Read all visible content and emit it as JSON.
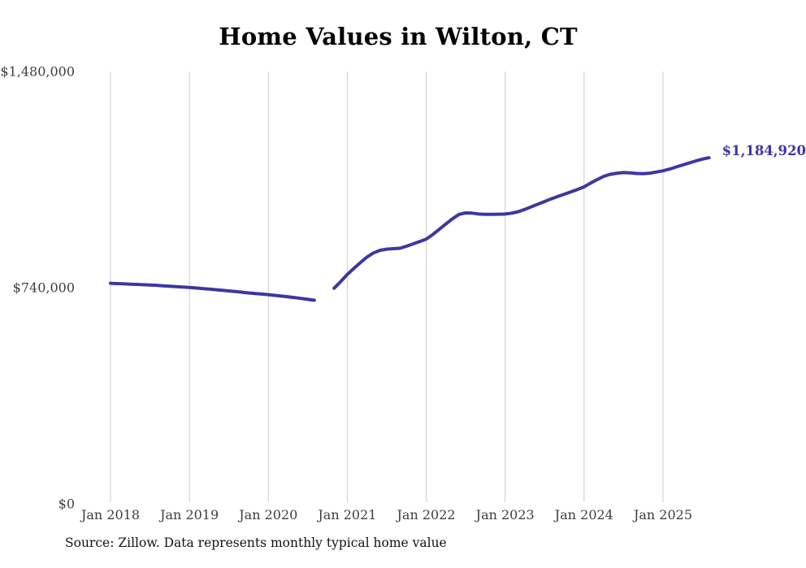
{
  "title": "Home Values in Wilton, CT",
  "source_note": "Source: Zillow. Data represents monthly typical home value",
  "colors": {
    "line": "#3c37a0",
    "grid": "#cccccc",
    "axis_text": "#3d3d3d",
    "title_text": "#000000",
    "end_label_text": "#3c37a0"
  },
  "chart_data": {
    "type": "line",
    "title": "Home Values in Wilton, CT",
    "xlabel": "",
    "ylabel": "",
    "unit": "USD",
    "frequency": "monthly",
    "grid": "vertical-only",
    "legend": "none",
    "ylim": [
      0,
      1480000
    ],
    "y_tick_labels": [
      {
        "label": "$0",
        "value": 0
      },
      {
        "label": "$740,000",
        "value": 740000
      },
      {
        "label": "$1,480,000",
        "value": 1480000
      }
    ],
    "x_tick_labels": [
      {
        "label": "Jan 2018",
        "month_offset": 0
      },
      {
        "label": "Jan 2019",
        "month_offset": 12
      },
      {
        "label": "Jan 2020",
        "month_offset": 24
      },
      {
        "label": "Jan 2021",
        "month_offset": 36
      },
      {
        "label": "Jan 2022",
        "month_offset": 48
      },
      {
        "label": "Jan 2023",
        "month_offset": 60
      },
      {
        "label": "Jan 2024",
        "month_offset": 72
      },
      {
        "label": "Jan 2025",
        "month_offset": 84
      }
    ],
    "data_gap_months": [
      "2020-09",
      "2020-10"
    ],
    "series": [
      {
        "name": "Typical home value",
        "start_month": "2018-01",
        "values": [
          755000,
          754000,
          753000,
          752000,
          751000,
          750000,
          749000,
          748000,
          746500,
          745000,
          743500,
          742000,
          740500,
          739000,
          737000,
          735000,
          733000,
          731000,
          729000,
          727000,
          724500,
          722000,
          720000,
          718000,
          716000,
          713500,
          711000,
          708500,
          706000,
          703000,
          700000,
          697000,
          null,
          null,
          738000,
          761000,
          785000,
          806000,
          826000,
          845000,
          859000,
          868000,
          872000,
          873500,
          875000,
          882000,
          890000,
          898000,
          906000,
          922000,
          940000,
          958000,
          976000,
          991000,
          996000,
          995000,
          992000,
          991000,
          991000,
          991500,
          992000,
          995000,
          1000000,
          1008000,
          1017000,
          1026000,
          1035000,
          1044000,
          1052000,
          1060000,
          1068000,
          1076000,
          1085000,
          1098000,
          1110000,
          1121000,
          1128000,
          1132000,
          1134000,
          1133000,
          1131000,
          1130000,
          1132000,
          1136000,
          1140000,
          1146000,
          1153000,
          1160000,
          1167000,
          1174000,
          1180000,
          1184920
        ]
      }
    ],
    "end_annotation": {
      "text": "$1,184,920",
      "month": "2025-08",
      "value": 1184920
    }
  }
}
